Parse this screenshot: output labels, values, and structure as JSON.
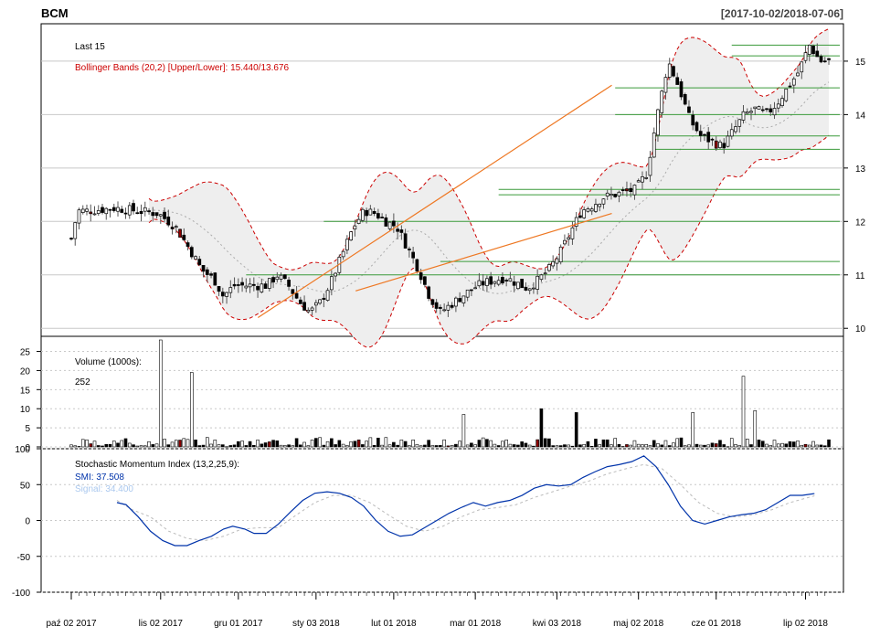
{
  "chart_data": [
    {
      "type": "candlestick",
      "panel": "price",
      "title": "BCM",
      "date_range": "[2017-10-02/2018-07-06]",
      "last_label": "Last 15",
      "bb_label": "Bollinger Bands (20,2) [Upper/Lower]: 15.440/13.676",
      "ylim": [
        9.85,
        15.7
      ],
      "yticks": [
        10,
        11,
        12,
        13,
        14,
        15
      ],
      "n_bars": 196,
      "points": [
        [
          0,
          11.68
        ],
        [
          3,
          12.2
        ],
        [
          8,
          12.2
        ],
        [
          20,
          12.25
        ],
        [
          30,
          12.2
        ],
        [
          40,
          12.15
        ],
        [
          48,
          11.9
        ],
        [
          55,
          11.45
        ],
        [
          60,
          11.1
        ],
        [
          66,
          10.9
        ],
        [
          70,
          10.6
        ],
        [
          75,
          10.8
        ],
        [
          80,
          10.8
        ],
        [
          90,
          10.8
        ],
        [
          95,
          11.0
        ],
        [
          100,
          10.8
        ],
        [
          105,
          10.5
        ],
        [
          110,
          10.3
        ],
        [
          115,
          10.5
        ],
        [
          120,
          10.9
        ],
        [
          125,
          11.4
        ],
        [
          130,
          11.9
        ],
        [
          135,
          12.2
        ],
        [
          140,
          12.15
        ],
        [
          145,
          12.0
        ],
        [
          150,
          11.9
        ],
        [
          155,
          11.5
        ],
        [
          160,
          11.1
        ],
        [
          165,
          10.6
        ],
        [
          170,
          10.3
        ],
        [
          175,
          10.45
        ],
        [
          180,
          10.6
        ],
        [
          185,
          10.75
        ],
        [
          190,
          10.85
        ],
        [
          195,
          10.9
        ],
        [
          200,
          10.95
        ],
        [
          205,
          10.85
        ],
        [
          210,
          10.75
        ],
        [
          215,
          10.9
        ],
        [
          220,
          11.1
        ],
        [
          225,
          11.4
        ],
        [
          230,
          11.8
        ],
        [
          235,
          12.2
        ],
        [
          240,
          12.3
        ],
        [
          245,
          12.45
        ],
        [
          250,
          12.5
        ],
        [
          255,
          12.55
        ],
        [
          260,
          12.6
        ],
        [
          265,
          12.9
        ],
        [
          270,
          14.0
        ],
        [
          275,
          15.0
        ],
        [
          280,
          14.5
        ],
        [
          285,
          13.9
        ],
        [
          290,
          13.6
        ],
        [
          295,
          13.5
        ],
        [
          300,
          13.4
        ],
        [
          305,
          13.7
        ],
        [
          310,
          14.0
        ],
        [
          315,
          14.1
        ],
        [
          320,
          14.0
        ],
        [
          325,
          14.2
        ],
        [
          330,
          14.5
        ],
        [
          335,
          14.8
        ],
        [
          340,
          15.3
        ],
        [
          345,
          15.0
        ],
        [
          349,
          15.0
        ]
      ],
      "volume": {
        "title": "Volume (1000s):",
        "last": "252",
        "ylim": [
          0,
          28
        ],
        "yticks": [
          0,
          5,
          10,
          15,
          20,
          25
        ],
        "spikes": [
          [
            23,
            28
          ],
          [
            31,
            19.5
          ],
          [
            101,
            8.5
          ],
          [
            121,
            10
          ],
          [
            130,
            9
          ],
          [
            160,
            9
          ],
          [
            173,
            18.5
          ],
          [
            176,
            9.5
          ]
        ]
      },
      "smi": {
        "title": "Stochastic Momentum Index (13,2,25,9):",
        "smi_label": "SMI: 37.508",
        "signal_label": "Signal: 34.400",
        "ylim": [
          -100,
          100
        ],
        "yticks": [
          -100,
          -50,
          0,
          50,
          100
        ],
        "smi_points": [
          [
            15,
            25
          ],
          [
            18,
            22
          ],
          [
            22,
            5
          ],
          [
            26,
            -15
          ],
          [
            30,
            -28
          ],
          [
            34,
            -35
          ],
          [
            38,
            -35
          ],
          [
            42,
            -28
          ],
          [
            46,
            -22
          ],
          [
            50,
            -12
          ],
          [
            53,
            -8
          ],
          [
            57,
            -12
          ],
          [
            60,
            -18
          ],
          [
            64,
            -18
          ],
          [
            68,
            -5
          ],
          [
            72,
            12
          ],
          [
            76,
            28
          ],
          [
            80,
            38
          ],
          [
            84,
            40
          ],
          [
            88,
            38
          ],
          [
            92,
            32
          ],
          [
            96,
            20
          ],
          [
            100,
            0
          ],
          [
            104,
            -15
          ],
          [
            108,
            -22
          ],
          [
            112,
            -20
          ],
          [
            116,
            -10
          ],
          [
            120,
            0
          ],
          [
            124,
            10
          ],
          [
            128,
            18
          ],
          [
            132,
            25
          ],
          [
            136,
            20
          ],
          [
            140,
            25
          ],
          [
            144,
            28
          ],
          [
            148,
            35
          ],
          [
            152,
            45
          ],
          [
            156,
            50
          ],
          [
            160,
            48
          ],
          [
            164,
            50
          ],
          [
            168,
            60
          ],
          [
            172,
            68
          ],
          [
            176,
            75
          ],
          [
            180,
            78
          ],
          [
            184,
            82
          ],
          [
            188,
            90
          ],
          [
            192,
            75
          ],
          [
            196,
            50
          ],
          [
            200,
            20
          ],
          [
            204,
            0
          ],
          [
            208,
            -5
          ],
          [
            212,
            0
          ],
          [
            216,
            5
          ],
          [
            220,
            8
          ],
          [
            224,
            10
          ],
          [
            228,
            15
          ],
          [
            232,
            25
          ],
          [
            236,
            35
          ],
          [
            240,
            35
          ],
          [
            244,
            37.5
          ]
        ],
        "signal_points": [
          [
            15,
            28
          ],
          [
            20,
            15
          ],
          [
            26,
            5
          ],
          [
            32,
            -15
          ],
          [
            38,
            -25
          ],
          [
            44,
            -28
          ],
          [
            50,
            -22
          ],
          [
            56,
            -12
          ],
          [
            62,
            -10
          ],
          [
            68,
            -10
          ],
          [
            74,
            8
          ],
          [
            80,
            25
          ],
          [
            86,
            35
          ],
          [
            92,
            35
          ],
          [
            98,
            25
          ],
          [
            104,
            8
          ],
          [
            110,
            -8
          ],
          [
            116,
            -15
          ],
          [
            122,
            -8
          ],
          [
            128,
            5
          ],
          [
            134,
            15
          ],
          [
            140,
            18
          ],
          [
            146,
            22
          ],
          [
            152,
            32
          ],
          [
            158,
            40
          ],
          [
            164,
            48
          ],
          [
            170,
            55
          ],
          [
            176,
            65
          ],
          [
            182,
            72
          ],
          [
            188,
            78
          ],
          [
            194,
            72
          ],
          [
            200,
            50
          ],
          [
            206,
            25
          ],
          [
            212,
            10
          ],
          [
            218,
            5
          ],
          [
            224,
            8
          ],
          [
            230,
            15
          ],
          [
            236,
            25
          ],
          [
            244,
            34.4
          ]
        ]
      },
      "x_tick_labels": [
        "paź 02 2017",
        "lis 02 2017",
        "gru 01 2017",
        "sty 03 2018",
        "lut 01 2018",
        "mar 01 2018",
        "kwi 03 2018",
        "maj 02 2018",
        "cze 01 2018",
        "lip 02 2018"
      ],
      "x_tick_bar_index": [
        0,
        23,
        43,
        63,
        83,
        104,
        125,
        146,
        166,
        189
      ],
      "support_resistance_levels": [
        15.3,
        15.1,
        14.5,
        14.0,
        13.6,
        13.35,
        12.6,
        12.5,
        12.0,
        11.25,
        11.0
      ],
      "trendlines": [
        [
          [
            86,
            10.2
          ],
          [
            249,
            14.55
          ]
        ],
        [
          [
            131,
            10.7
          ],
          [
            249,
            12.15
          ]
        ]
      ],
      "colors": {
        "up": "#ffffff",
        "down": "#000000",
        "highlight": "#8b0000",
        "bbands": "#cc0000",
        "smi": "#0033aa",
        "signal": "#aac8ee",
        "levels": "#3a9a3a",
        "trend": "#ee7722"
      }
    }
  ]
}
